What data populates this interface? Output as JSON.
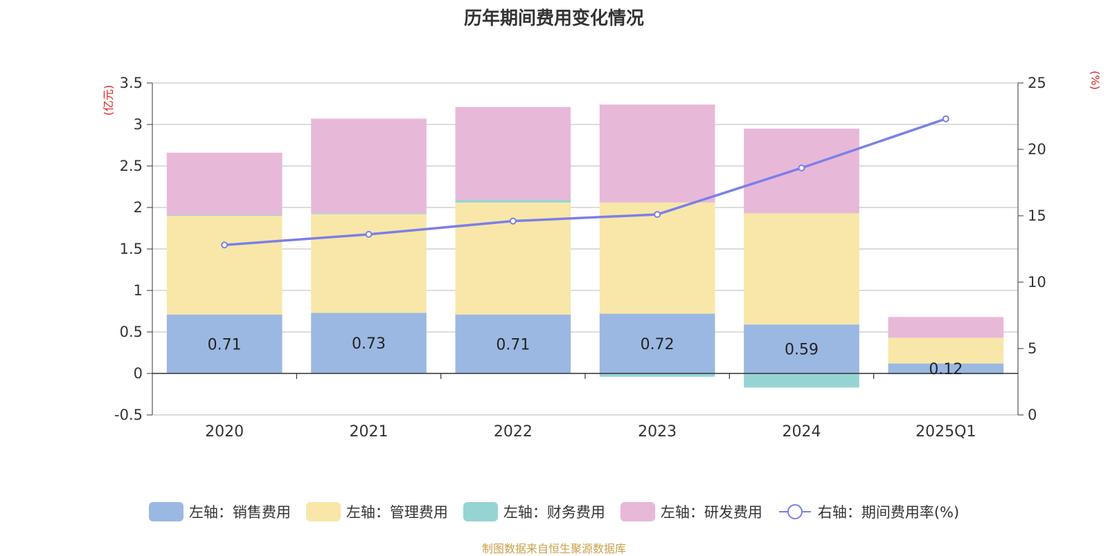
{
  "chart_data": {
    "type": "bar",
    "title": "历年期间费用变化情况",
    "categories": [
      "2020",
      "2021",
      "2022",
      "2023",
      "2024",
      "2025Q1"
    ],
    "left_axis": {
      "label": "(亿元)",
      "min": -0.5,
      "max": 3.5,
      "ticks": [
        "-0.5",
        "0",
        "0.5",
        "1",
        "1.5",
        "2",
        "2.5",
        "3",
        "3.5"
      ]
    },
    "right_axis": {
      "label": "(%)",
      "min": 0,
      "max": 25,
      "ticks": [
        "0",
        "5",
        "10",
        "15",
        "20",
        "25"
      ]
    },
    "series": [
      {
        "name": "左轴：销售费用",
        "type": "bar",
        "color": "#9bb8e2",
        "values": [
          0.71,
          0.73,
          0.71,
          0.72,
          0.59,
          0.12
        ],
        "labels": [
          "0.71",
          "0.73",
          "0.71",
          "0.72",
          "0.59",
          "0.12"
        ]
      },
      {
        "name": "左轴：管理费用",
        "type": "bar",
        "color": "#f8e7a8",
        "values": [
          1.19,
          1.19,
          1.35,
          1.34,
          1.34,
          0.31
        ]
      },
      {
        "name": "左轴：财务费用",
        "type": "bar",
        "color": "#96d4d4",
        "values": [
          0.01,
          0.01,
          0.03,
          -0.04,
          -0.17,
          -0.01
        ]
      },
      {
        "name": "左轴：研发费用",
        "type": "bar",
        "color": "#e8b8d8",
        "values": [
          0.75,
          1.14,
          1.12,
          1.18,
          1.02,
          0.25
        ]
      },
      {
        "name": "右轴：期间费用率(%)",
        "type": "line",
        "color": "#7b7fe8",
        "values": [
          12.8,
          13.6,
          14.6,
          15.1,
          18.6,
          22.3
        ]
      }
    ],
    "grid": true,
    "legend_position": "bottom"
  },
  "source": "制图数据来自恒生聚源数据库"
}
